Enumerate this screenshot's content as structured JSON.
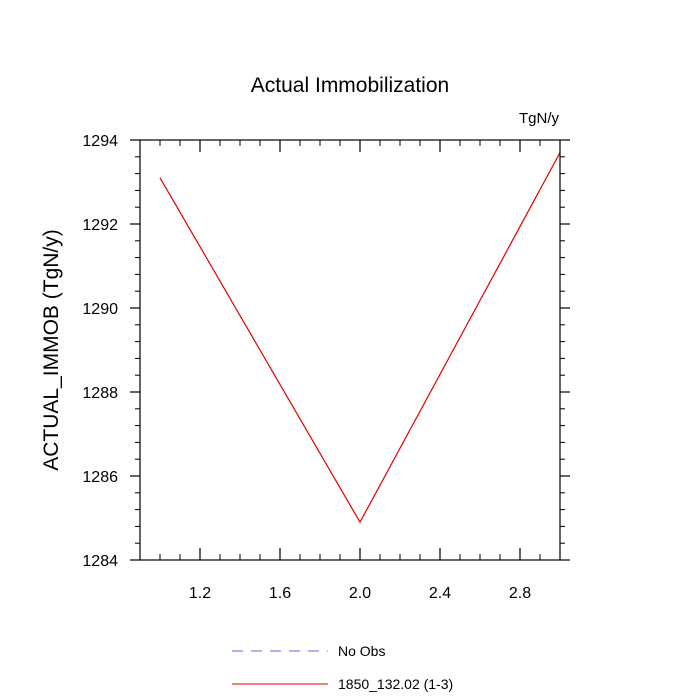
{
  "chart_data": {
    "type": "line",
    "title": "Actual Immobilization",
    "units_label": "TgN/y",
    "ylabel": "ACTUAL_IMMOB  (TgN/y)",
    "xlabel": "",
    "xlim": [
      0.9,
      3.0
    ],
    "ylim": [
      1284,
      1294
    ],
    "x_ticks": [
      1.2,
      1.6,
      2.0,
      2.4,
      2.8
    ],
    "x_tick_labels": [
      "1.2",
      "1.6",
      "2.0",
      "2.4",
      "2.8"
    ],
    "y_ticks": [
      1284,
      1286,
      1288,
      1290,
      1292,
      1294
    ],
    "y_tick_labels": [
      "1284",
      "1286",
      "1288",
      "1290",
      "1292",
      "1294"
    ],
    "grid": false,
    "legend_position": "bottom",
    "series": [
      {
        "name": "No Obs",
        "color": "#6666dd",
        "dashed": true,
        "x": [],
        "y": []
      },
      {
        "name": "1850_132.02 (1-3)",
        "color": "#e00000",
        "dashed": false,
        "x": [
          1.0,
          2.0,
          3.0
        ],
        "y": [
          1293.1,
          1284.9,
          1293.7
        ]
      }
    ]
  }
}
